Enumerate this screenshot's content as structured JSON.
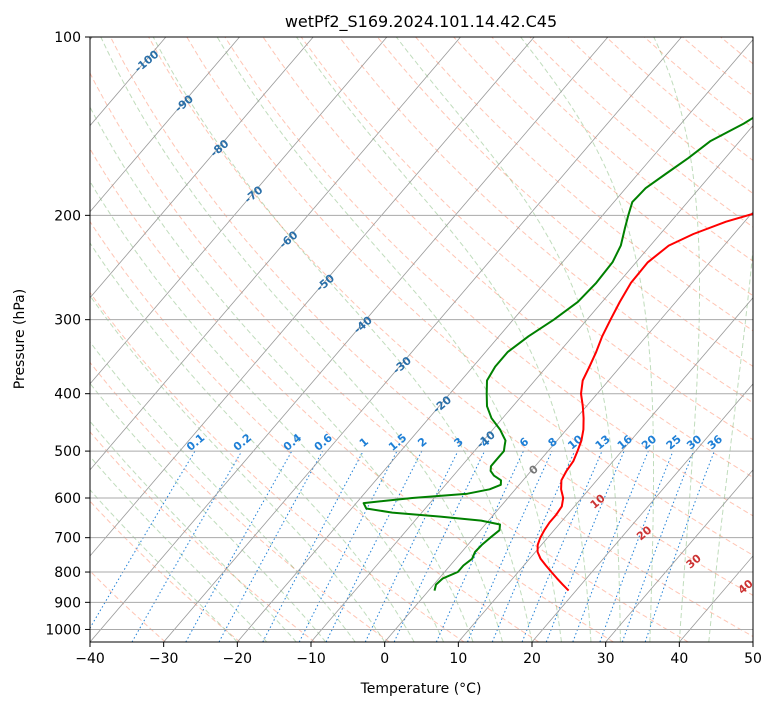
{
  "chart_data": {
    "type": "line",
    "title": "wetPf2_S169.2024.101.14.42.C45",
    "xlabel": "Temperature (°C)",
    "ylabel": "Pressure (hPa)",
    "xlim": [
      -40,
      50
    ],
    "ylim": [
      1050,
      100
    ],
    "y_scale": "log",
    "x_ticks": [
      "−40",
      "−30",
      "−20",
      "−10",
      "0",
      "10",
      "20",
      "30",
      "40",
      "50"
    ],
    "x_tick_values": [
      -40,
      -30,
      -20,
      -10,
      0,
      10,
      20,
      30,
      40,
      50
    ],
    "y_ticks": [
      "100",
      "200",
      "300",
      "400",
      "500",
      "600",
      "700",
      "800",
      "900",
      "1000"
    ],
    "y_tick_values": [
      100,
      200,
      300,
      400,
      500,
      600,
      700,
      800,
      900,
      1000
    ],
    "grid": true,
    "colors": {
      "temperature": "#ff0000",
      "dewpoint": "#008000",
      "isotherm": "#999999",
      "dry_adiabat": "#ff8c69",
      "moist_adiabat": "#2e8b22",
      "mixing_ratio": "#1e7fd6",
      "height_label": "#2a6fa8",
      "theta_label": "#cc3333"
    },
    "series": [
      {
        "key": "temperature",
        "pressure": [
          860,
          840,
          820,
          800,
          780,
          760,
          740,
          720,
          700,
          680,
          660,
          640,
          620,
          600,
          580,
          560,
          540,
          520,
          500,
          480,
          460,
          440,
          420,
          400,
          380,
          360,
          340,
          320,
          300,
          280,
          260,
          240,
          225,
          215,
          205,
          195,
          185,
          175,
          165,
          155,
          145,
          135,
          125,
          115,
          105,
          100
        ],
        "temperature": [
          19,
          17.5,
          16,
          14.5,
          13,
          11.5,
          10.3,
          9.5,
          9,
          8.7,
          8.5,
          8.5,
          8.3,
          7.5,
          6.2,
          5.2,
          4.8,
          4.6,
          4,
          3.3,
          2.3,
          1,
          -0.5,
          -2.2,
          -3.5,
          -4.2,
          -5,
          -6,
          -6.8,
          -7.6,
          -8.3,
          -8.4,
          -7.5,
          -5.5,
          -2.5,
          2,
          7,
          11.5,
          15.5,
          18,
          19,
          20,
          22,
          23.5,
          24.8,
          25.3
        ]
      },
      {
        "key": "dewpoint",
        "pressure": [
          860,
          840,
          820,
          800,
          780,
          760,
          740,
          720,
          700,
          680,
          665,
          655,
          645,
          635,
          625,
          612,
          600,
          590,
          580,
          570,
          560,
          550,
          540,
          530,
          520,
          510,
          500,
          490,
          480,
          470,
          460,
          440,
          420,
          400,
          380,
          360,
          340,
          320,
          300,
          280,
          260,
          240,
          225,
          210,
          200,
          190,
          180,
          170,
          160,
          150,
          140,
          130,
          120,
          110,
          100
        ],
        "temperature": [
          0.8,
          0.3,
          0.5,
          1.8,
          1.8,
          2.2,
          1.8,
          1.9,
          2.2,
          2.6,
          2,
          -1,
          -7,
          -14,
          -18,
          -19,
          -13,
          -6,
          -3.5,
          -2.5,
          -3,
          -4.5,
          -5.5,
          -6,
          -6,
          -6,
          -6,
          -6.5,
          -7,
          -8,
          -9,
          -11.5,
          -13.5,
          -15,
          -16.5,
          -17,
          -17,
          -16,
          -14.5,
          -13.3,
          -13,
          -13.2,
          -14,
          -15.5,
          -16.5,
          -17.5,
          -17.3,
          -16.2,
          -15,
          -14,
          -11.5,
          -9.5,
          -7,
          -5,
          -2.2
        ]
      }
    ],
    "mixing_ratio_labels": [
      "0.1",
      "0.2",
      "0.4",
      "0.6",
      "1",
      "1.5",
      "2",
      "3",
      "4",
      "6",
      "8",
      "10",
      "13",
      "16",
      "20",
      "25",
      "30",
      "36"
    ],
    "height_labels": [
      "-100",
      "-90",
      "-80",
      "-70",
      "-60",
      "-50",
      "-40",
      "-30",
      "-20",
      "-10",
      "0"
    ],
    "theta_labels": [
      "10",
      "20",
      "30",
      "40"
    ]
  }
}
